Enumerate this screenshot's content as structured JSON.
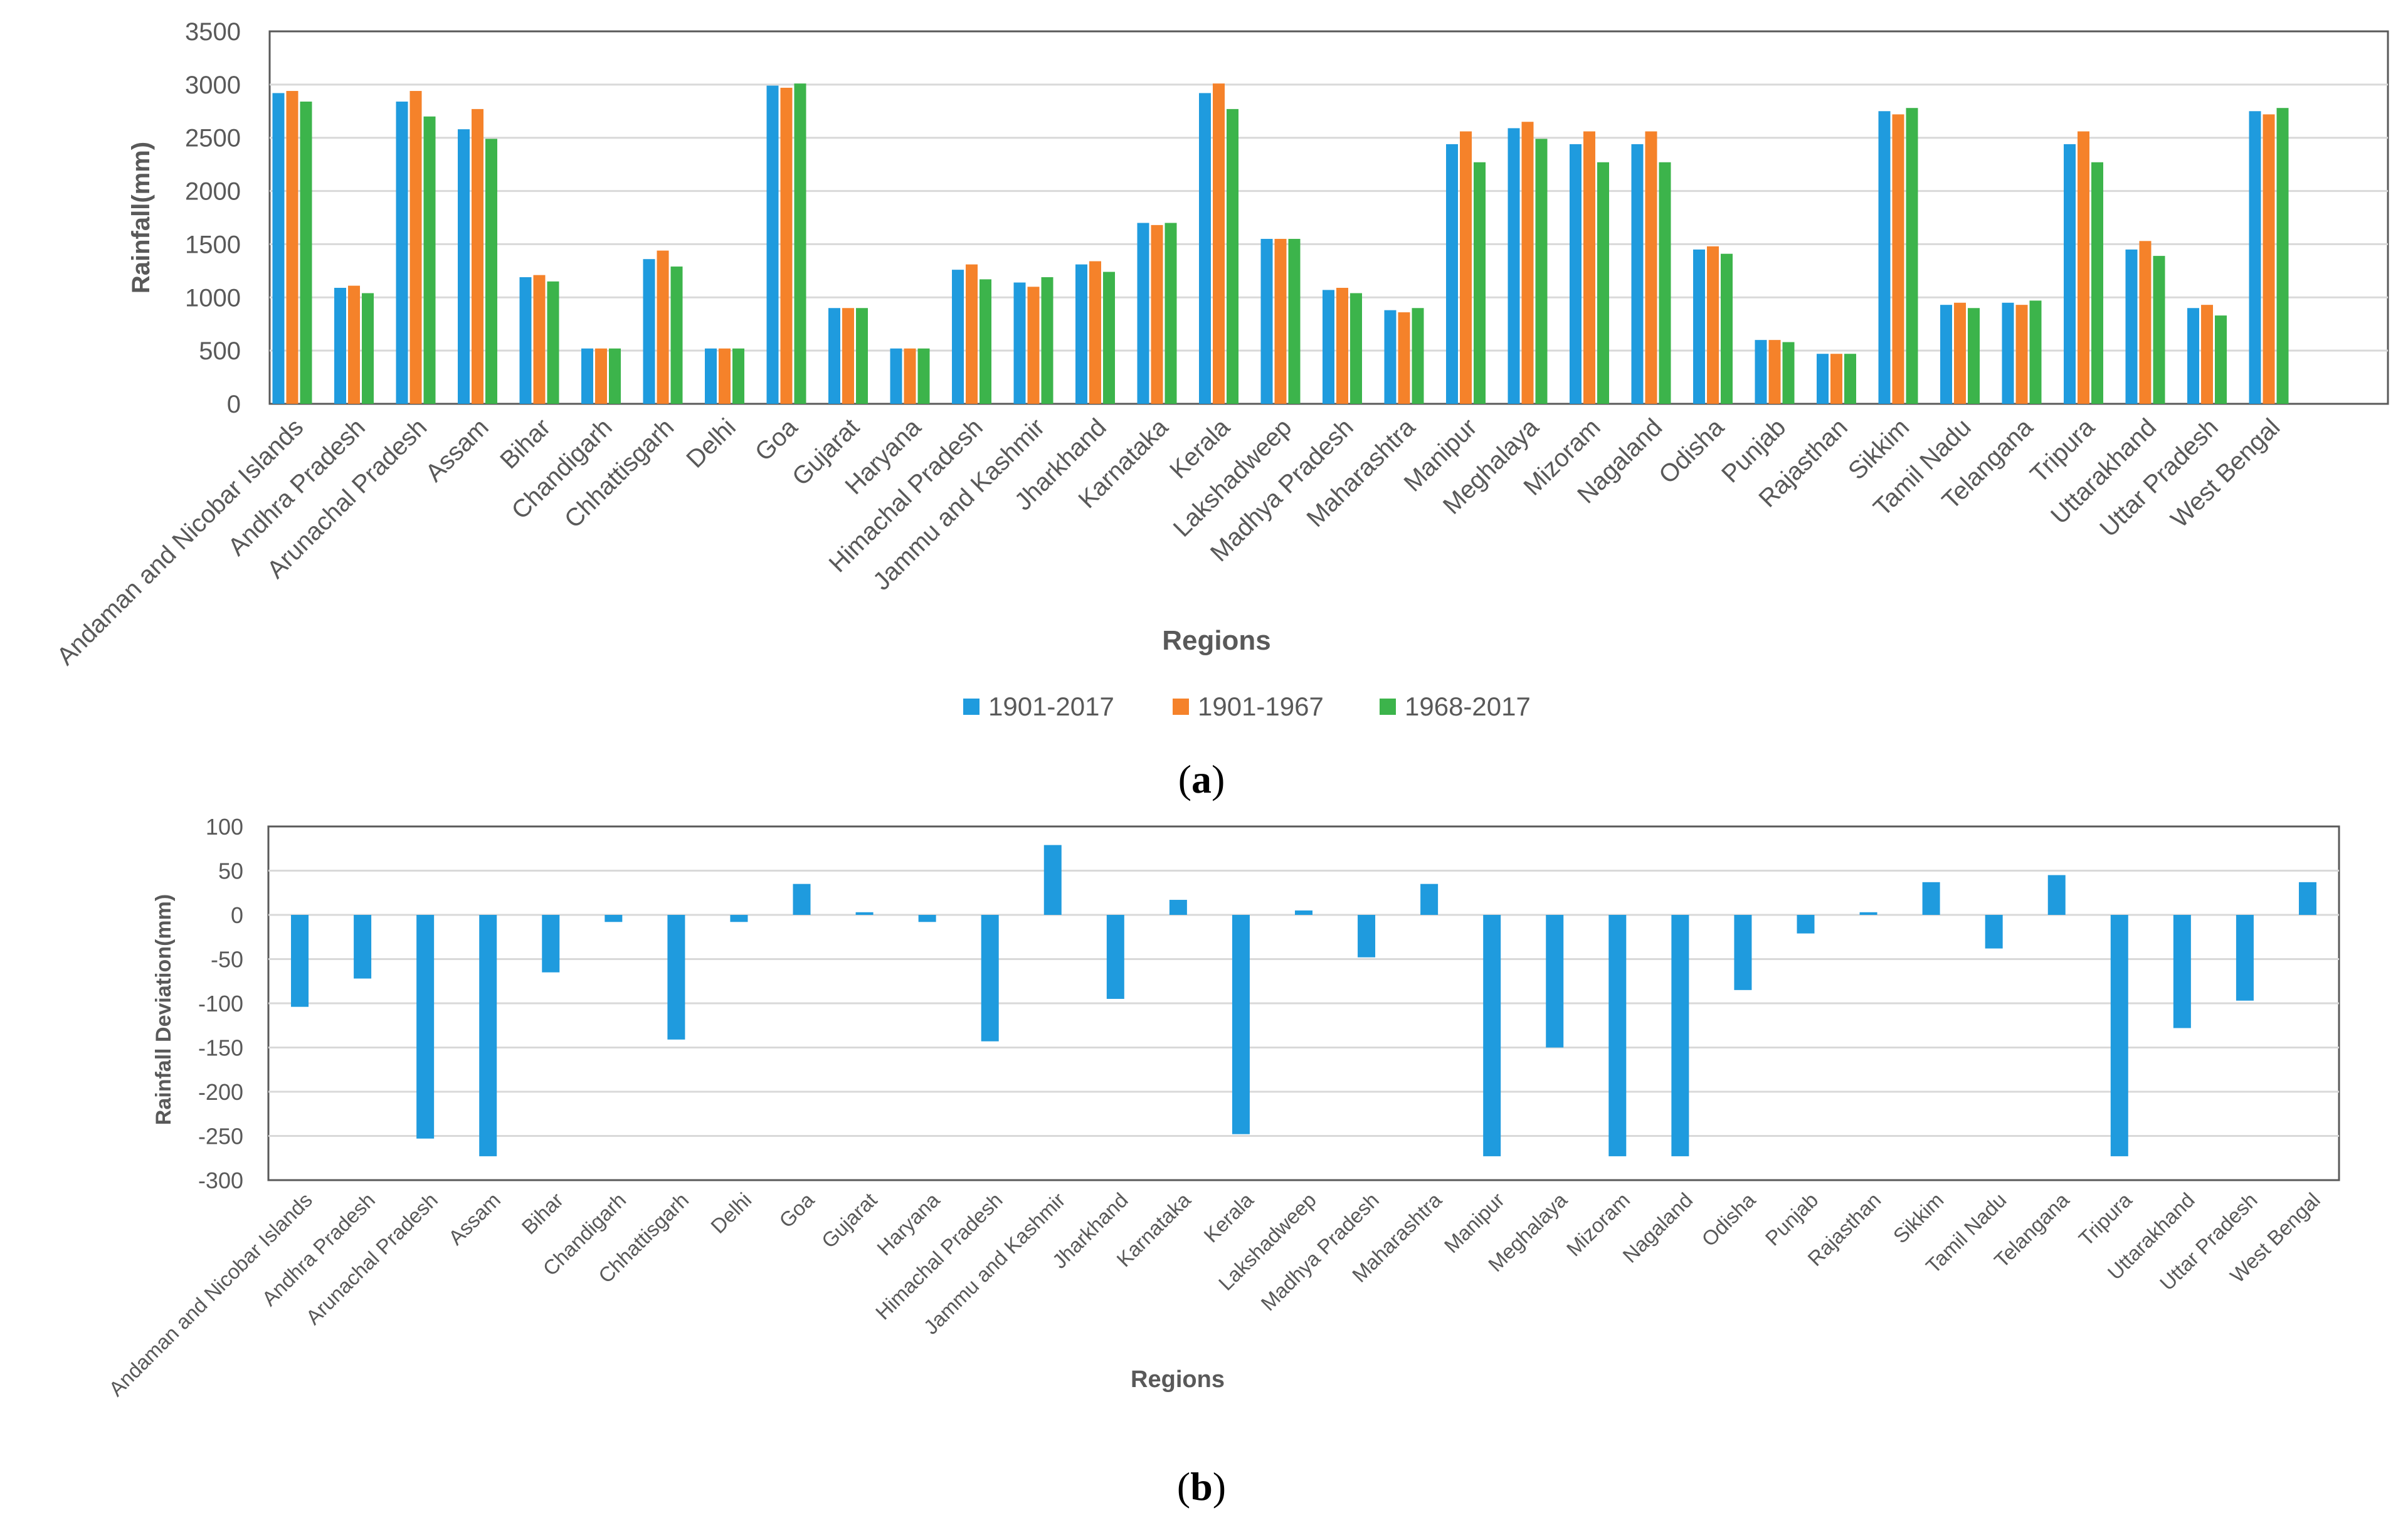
{
  "chart_data": [
    {
      "type": "bar",
      "panel_label": "(a)",
      "title": "",
      "xlabel": "Regions",
      "ylabel": "Rainfall(mm)",
      "ylim": [
        0,
        3500
      ],
      "yticks": [
        0,
        500,
        1000,
        1500,
        2000,
        2500,
        3000,
        3500
      ],
      "grid": true,
      "legend_position": "bottom",
      "categories": [
        "Andaman and Nicobar Islands",
        "Andhra Pradesh",
        "Arunachal Pradesh",
        "Assam",
        "Bihar",
        "Chandigarh",
        "Chhattisgarh",
        "Delhi",
        "Goa",
        "Gujarat",
        "Haryana",
        "Himachal Pradesh",
        "Jammu and Kashmir",
        "Jharkhand",
        "Karnataka",
        "Kerala",
        "Lakshadweep",
        "Madhya Pradesh",
        "Maharashtra",
        "Manipur",
        "Meghalaya",
        "Mizoram",
        "Nagaland",
        "Odisha",
        "Punjab",
        "Rajasthan",
        "Sikkim",
        "Tamil Nadu",
        "Telangana",
        "Tripura",
        "Uttarakhand",
        "Uttar Pradesh",
        "West Bengal"
      ],
      "series": [
        {
          "name": "1901-2017",
          "color": "#1F9BDE",
          "values": [
            2920,
            1090,
            2840,
            2580,
            1190,
            520,
            1360,
            520,
            2990,
            900,
            520,
            1260,
            1140,
            1310,
            1700,
            2920,
            1550,
            1070,
            880,
            2440,
            2590,
            2440,
            2440,
            1450,
            600,
            470,
            2750,
            930,
            950,
            2440,
            1450,
            900,
            2750
          ]
        },
        {
          "name": "1901-1967",
          "color": "#F5822A",
          "values": [
            2940,
            1110,
            2940,
            2770,
            1210,
            520,
            1440,
            520,
            2970,
            900,
            520,
            1310,
            1100,
            1340,
            1680,
            3010,
            1550,
            1090,
            860,
            2560,
            2650,
            2560,
            2560,
            1480,
            600,
            470,
            2720,
            950,
            930,
            2560,
            1530,
            930,
            2720
          ]
        },
        {
          "name": "1968-2017",
          "color": "#3CB44B",
          "values": [
            2840,
            1040,
            2700,
            2490,
            1150,
            520,
            1290,
            520,
            3010,
            900,
            520,
            1170,
            1190,
            1240,
            1700,
            2770,
            1550,
            1040,
            900,
            2270,
            2490,
            2270,
            2270,
            1410,
            580,
            470,
            2780,
            900,
            970,
            2270,
            1390,
            830,
            2780
          ]
        }
      ]
    },
    {
      "type": "bar",
      "panel_label": "(b)",
      "title": "",
      "xlabel": "Regions",
      "ylabel": "Rainfall Deviation(mm)",
      "ylim": [
        -300,
        100
      ],
      "yticks": [
        -300,
        -250,
        -200,
        -150,
        -100,
        -50,
        0,
        50,
        100
      ],
      "grid": true,
      "categories": [
        "Andaman and Nicobar Islands",
        "Andhra Pradesh",
        "Arunachal Pradesh",
        "Assam",
        "Bihar",
        "Chandigarh",
        "Chhattisgarh",
        "Delhi",
        "Goa",
        "Gujarat",
        "Haryana",
        "Himachal Pradesh",
        "Jammu and Kashmir",
        "Jharkhand",
        "Karnataka",
        "Kerala",
        "Lakshadweep",
        "Madhya Pradesh",
        "Maharashtra",
        "Manipur",
        "Meghalaya",
        "Mizoram",
        "Nagaland",
        "Odisha",
        "Punjab",
        "Rajasthan",
        "Sikkim",
        "Tamil Nadu",
        "Telangana",
        "Tripura",
        "Uttarakhand",
        "Uttar Pradesh",
        "West Bengal"
      ],
      "series": [
        {
          "name": "Rainfall Deviation",
          "color": "#1F9BDE",
          "values": [
            -104,
            -72,
            -253,
            -273,
            -65,
            -8,
            -141,
            -8,
            35,
            3,
            -8,
            -143,
            79,
            -95,
            17,
            -248,
            5,
            -48,
            35,
            -273,
            -150,
            -273,
            -273,
            -85,
            -21,
            3,
            37,
            -38,
            45,
            -273,
            -128,
            -97,
            37
          ]
        }
      ]
    }
  ]
}
